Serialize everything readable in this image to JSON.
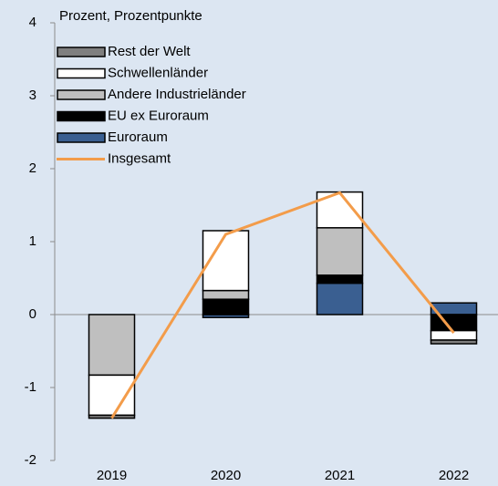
{
  "chart_data": {
    "type": "bar",
    "stacked": true,
    "title": "Prozent, Prozentpunkte",
    "categories": [
      "2019",
      "2020",
      "2021",
      "2022"
    ],
    "series": [
      {
        "name": "Rest der Welt",
        "color": "#7f7f7f",
        "values": [
          -0.04,
          0,
          0,
          -0.05
        ]
      },
      {
        "name": "Schwellenländer",
        "color": "#ffffff",
        "values": [
          -0.55,
          0.82,
          0.49,
          -0.13
        ]
      },
      {
        "name": "Andere Industrieländer",
        "color": "#bfbfbf",
        "values": [
          -0.83,
          0.12,
          0.65,
          0
        ]
      },
      {
        "name": "EU ex Euroraum",
        "color": "#000000",
        "values": [
          0,
          0.21,
          0.11,
          -0.22
        ]
      },
      {
        "name": "Euroraum",
        "color": "#3a5f91",
        "values": [
          0,
          -0.04,
          0.43,
          0.16
        ]
      },
      {
        "name": "Insgesamt",
        "type": "line",
        "color": "#f39c4a",
        "values": [
          -1.42,
          1.1,
          1.67,
          -0.25
        ]
      }
    ],
    "ylim": [
      -2,
      4
    ],
    "yticks": [
      -2,
      -1,
      0,
      1,
      2,
      3,
      4
    ]
  }
}
